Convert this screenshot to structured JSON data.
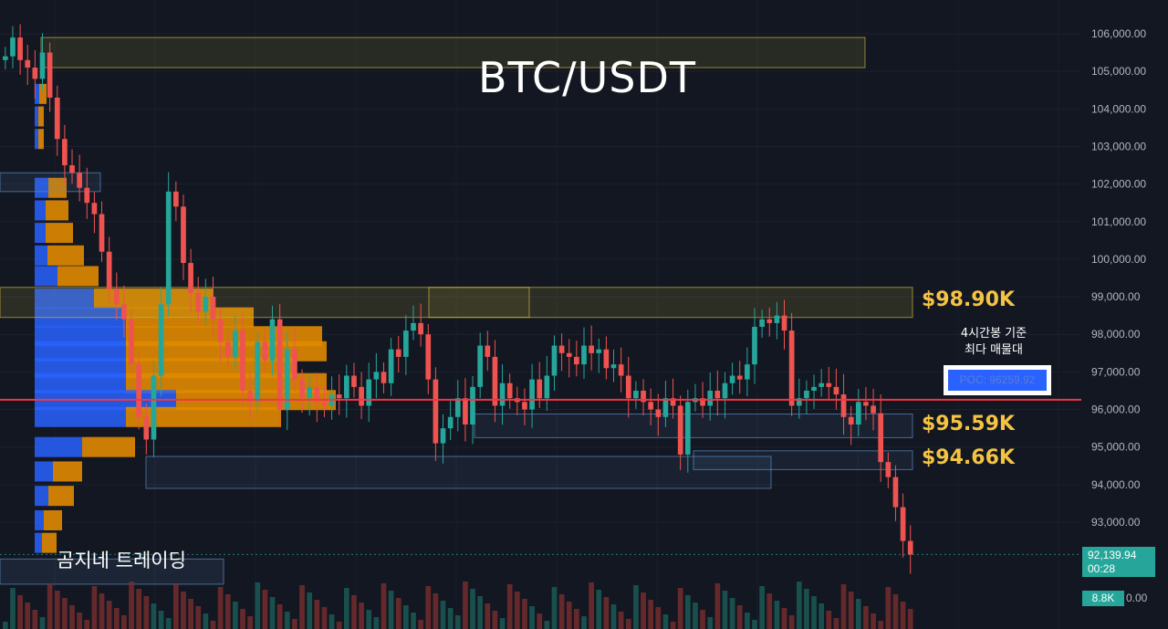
{
  "chart_data": {
    "type": "candlestick",
    "title": "BTC/USDT",
    "ylim": [
      91400,
      106800
    ],
    "y_ticks": [
      106000,
      105000,
      104000,
      103000,
      102000,
      101000,
      100000,
      99000,
      98000,
      97000,
      96000,
      95000,
      94000,
      93000
    ],
    "y_tick_labels": [
      "106,000.00",
      "105,000.00",
      "104,000.00",
      "103,000.00",
      "102,000.00",
      "101,000.00",
      "100,000.00",
      "99,000.00",
      "98,000.00",
      "97,000.00",
      "96,000.00",
      "95,000.00",
      "94,000.00",
      "93,000.00"
    ],
    "grid": true,
    "candle_closes": [
      105400,
      105900,
      105300,
      105100,
      104800,
      105500,
      104300,
      103200,
      102500,
      102300,
      101900,
      101500,
      101200,
      100200,
      99200,
      98800,
      98400,
      97200,
      95800,
      95200,
      96900,
      98800,
      101800,
      101400,
      99900,
      99100,
      98600,
      99000,
      98400,
      97800,
      97400,
      98100,
      96500,
      96200,
      97800,
      97300,
      98400,
      96000,
      97600,
      96800,
      96300,
      96600,
      96200,
      96100,
      96400,
      96300,
      96900,
      96600,
      96100,
      96800,
      97000,
      96700,
      97600,
      97400,
      98100,
      98300,
      98000,
      96800,
      95100,
      95500,
      95800,
      96300,
      95600,
      96600,
      97700,
      97400,
      96100,
      96700,
      96300,
      96200,
      96000,
      96800,
      96300,
      96900,
      97700,
      97500,
      97400,
      97200,
      97700,
      97500,
      97600,
      97100,
      97200,
      96900,
      96300,
      96500,
      96200,
      96000,
      95800,
      96300,
      96100,
      94800,
      96200,
      96300,
      96100,
      96500,
      96300,
      96700,
      96900,
      96800,
      97200,
      98200,
      98400,
      98300,
      98500,
      98100,
      96100,
      96300,
      96500,
      96600,
      96700,
      96600,
      96400,
      95800,
      95600,
      96200,
      96100,
      95900,
      94600,
      94200,
      93400,
      92500,
      92140
    ],
    "poc": "POC: 96259.92",
    "levels": [
      {
        "label": "$98.90K",
        "value": 98900
      },
      {
        "label": "$95.59K",
        "value": 95590
      },
      {
        "label": "$94.66K",
        "value": 94660
      }
    ],
    "annotations": [
      "4시간봉 기준",
      "최다 매물대"
    ],
    "last_price": "92,139.94",
    "countdown": "00:28",
    "volume_label": "8.8K",
    "watermark": "곰지네 트레이딩",
    "colors": {
      "up": "#26a69a",
      "down": "#ef5350",
      "poc_line": "#f23645",
      "profile_inside": "#2962ff",
      "profile_outside": "#e08a00",
      "zone": "#c9b53c",
      "level_text": "#f5c342"
    }
  }
}
